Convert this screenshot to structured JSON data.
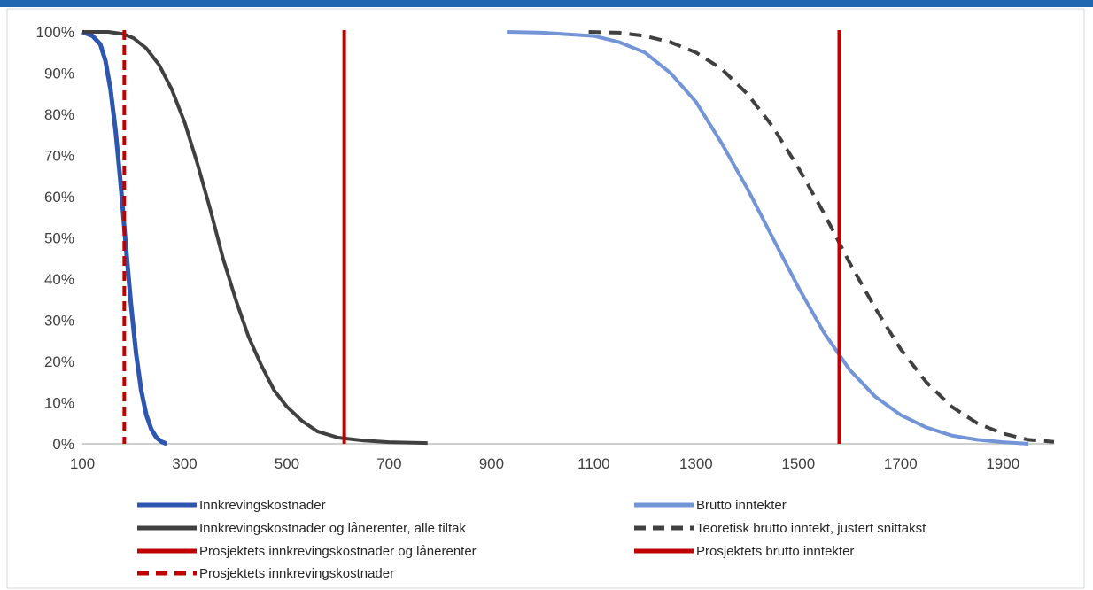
{
  "chart_data": {
    "type": "line",
    "title": "",
    "xlabel": "",
    "ylabel": "",
    "xlim": [
      100,
      2000
    ],
    "ylim": [
      0,
      1
    ],
    "x_ticks": [
      "100",
      "300",
      "500",
      "700",
      "900",
      "1100",
      "1300",
      "1500",
      "1700",
      "1900"
    ],
    "x_tick_values": [
      100,
      300,
      500,
      700,
      900,
      1100,
      1300,
      1500,
      1700,
      1900
    ],
    "y_ticks": [
      "0%",
      "10%",
      "20%",
      "30%",
      "40%",
      "50%",
      "60%",
      "70%",
      "80%",
      "90%",
      "100%"
    ],
    "y_tick_values": [
      0,
      0.1,
      0.2,
      0.3,
      0.4,
      0.5,
      0.6,
      0.7,
      0.8,
      0.9,
      1.0
    ],
    "grid": false,
    "legend_position": "bottom",
    "series": [
      {
        "name": "Innkrevingskostnader",
        "color": "#2E56B0",
        "style": "solid",
        "x": [
          100,
          120,
          135,
          145,
          155,
          165,
          175,
          185,
          195,
          205,
          215,
          225,
          235,
          245,
          255,
          265
        ],
        "y": [
          1.0,
          0.99,
          0.97,
          0.93,
          0.86,
          0.76,
          0.63,
          0.48,
          0.34,
          0.22,
          0.13,
          0.07,
          0.035,
          0.015,
          0.005,
          0.0
        ]
      },
      {
        "name": "Innkrevingskostnader og lånerenter, alle tiltak",
        "color": "#404040",
        "style": "solid",
        "x": [
          100,
          150,
          180,
          200,
          225,
          250,
          275,
          300,
          325,
          350,
          375,
          400,
          425,
          450,
          475,
          500,
          530,
          560,
          600,
          650,
          700,
          775
        ],
        "y": [
          1.0,
          1.0,
          0.995,
          0.985,
          0.96,
          0.92,
          0.86,
          0.78,
          0.68,
          0.57,
          0.45,
          0.35,
          0.26,
          0.19,
          0.13,
          0.09,
          0.055,
          0.03,
          0.015,
          0.008,
          0.004,
          0.002
        ]
      },
      {
        "name": "Brutto inntekter",
        "color": "#7395D8",
        "style": "solid",
        "x": [
          930,
          1000,
          1100,
          1150,
          1200,
          1250,
          1300,
          1350,
          1400,
          1450,
          1500,
          1550,
          1600,
          1650,
          1700,
          1750,
          1800,
          1850,
          1900,
          1950
        ],
        "y": [
          1.0,
          0.998,
          0.99,
          0.975,
          0.95,
          0.9,
          0.83,
          0.73,
          0.62,
          0.5,
          0.38,
          0.27,
          0.18,
          0.115,
          0.07,
          0.04,
          0.02,
          0.01,
          0.004,
          0.0
        ]
      },
      {
        "name": "Teoretisk brutto inntekt, justert snittakst",
        "color": "#404040",
        "style": "dashed",
        "x": [
          1090,
          1150,
          1200,
          1250,
          1300,
          1350,
          1400,
          1450,
          1500,
          1550,
          1600,
          1650,
          1700,
          1750,
          1800,
          1850,
          1900,
          1950,
          2000
        ],
        "y": [
          1.0,
          0.998,
          0.99,
          0.975,
          0.95,
          0.91,
          0.85,
          0.77,
          0.67,
          0.56,
          0.44,
          0.33,
          0.23,
          0.15,
          0.09,
          0.05,
          0.025,
          0.01,
          0.005
        ]
      },
      {
        "name": "Prosjektets innkrevingskostnader og lånerenter",
        "color": "#C00000",
        "style": "solid",
        "vertical_x": 612
      },
      {
        "name": "Prosjektets brutto inntekter",
        "color": "#C00000",
        "style": "solid",
        "vertical_x": 1580
      },
      {
        "name": "Prosjektets innkrevingskostnader",
        "color": "#C00000",
        "style": "dashed",
        "vertical_x": 182
      }
    ]
  },
  "legend": [
    {
      "label": "Innkrevingskostnader",
      "color": "#2E56B0",
      "style": "solid"
    },
    {
      "label": "Brutto inntekter",
      "color": "#7395D8",
      "style": "solid"
    },
    {
      "label": "Innkrevingskostnader og lånerenter, alle tiltak",
      "color": "#404040",
      "style": "solid"
    },
    {
      "label": "Teoretisk brutto inntekt, justert snittakst",
      "color": "#404040",
      "style": "dashed"
    },
    {
      "label": "Prosjektets innkrevingskostnader og lånerenter",
      "color": "#C00000",
      "style": "solid"
    },
    {
      "label": "Prosjektets brutto inntekter",
      "color": "#C00000",
      "style": "solid"
    },
    {
      "label": "Prosjektets innkrevingskostnader",
      "color": "#C00000",
      "style": "dashed"
    }
  ],
  "colors": {
    "accent_rule": "#1F67B1",
    "frame": "#D0D7E2"
  }
}
